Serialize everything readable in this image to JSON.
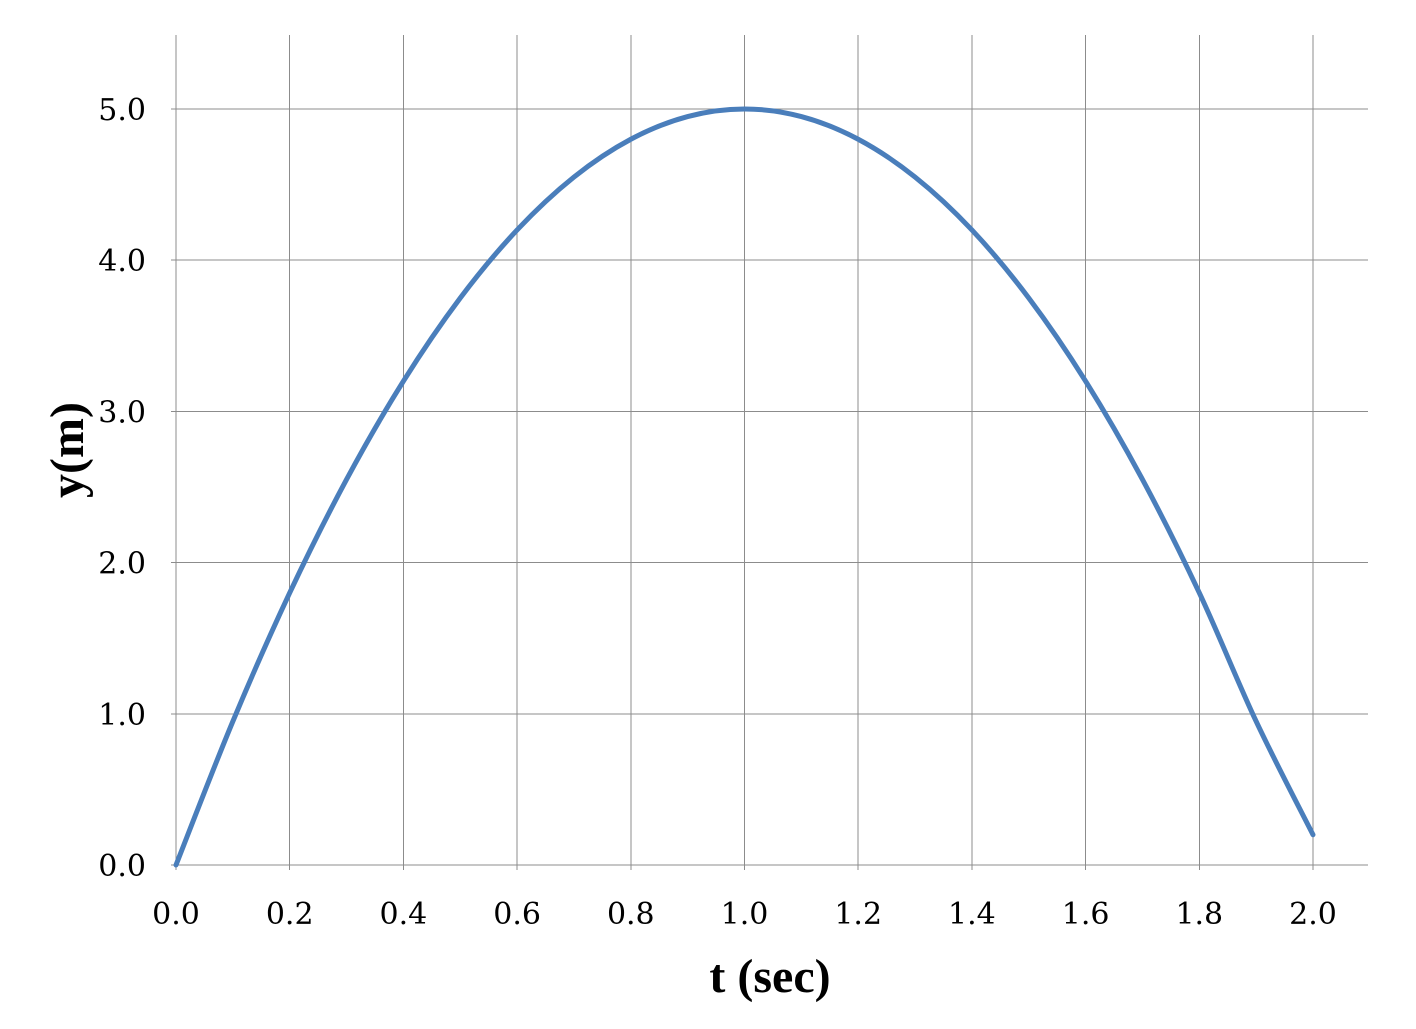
{
  "chart_data": {
    "type": "line",
    "title": "",
    "xlabel": "t (sec)",
    "ylabel": "y(m)",
    "xlim": [
      0.0,
      2.0
    ],
    "ylim": [
      0.0,
      5.0
    ],
    "x_ticks": [
      "0.0",
      "0.2",
      "0.4",
      "0.6",
      "0.8",
      "1.0",
      "1.2",
      "1.4",
      "1.6",
      "1.8",
      "2.0"
    ],
    "y_ticks": [
      "0.0",
      "1.0",
      "2.0",
      "3.0",
      "4.0",
      "5.0"
    ],
    "grid": true,
    "legend": "none",
    "series": [
      {
        "color": "#4a7ebb",
        "x": [
          0.0,
          0.1,
          0.2,
          0.3,
          0.4,
          0.5,
          0.6,
          0.7,
          0.8,
          0.9,
          1.0,
          1.1,
          1.2,
          1.3,
          1.4,
          1.5,
          1.6,
          1.7,
          1.8,
          1.9,
          2.0
        ],
        "y": [
          0.0,
          0.95,
          1.8,
          2.55,
          3.2,
          3.75,
          4.2,
          4.55,
          4.8,
          4.95,
          5.0,
          4.95,
          4.8,
          4.55,
          4.2,
          3.75,
          3.2,
          2.55,
          1.8,
          0.95,
          0.2
        ]
      }
    ]
  }
}
